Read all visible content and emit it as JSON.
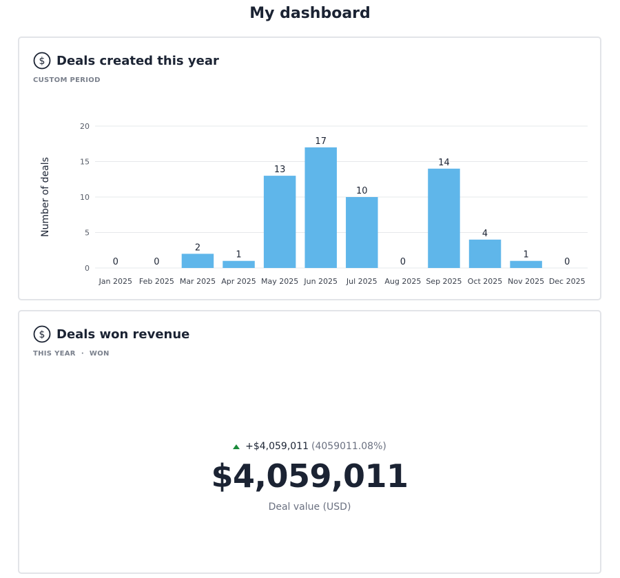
{
  "page": {
    "title": "My dashboard"
  },
  "card_deals_created": {
    "title": "Deals created this year",
    "icon": "dollar-circle-icon",
    "subtitle": "CUSTOM PERIOD"
  },
  "card_deals_won": {
    "title": "Deals won revenue",
    "icon": "dollar-circle-icon",
    "filters": [
      "THIS YEAR",
      "WON"
    ],
    "change_amount": "+$4,059,011",
    "change_percent": "(4059011.08%)",
    "change_direction_icon": "triangle-up-icon",
    "value": "$4,059,011",
    "value_label": "Deal value (USD)"
  },
  "colors": {
    "bar": "#5fb6ea",
    "grid": "#e6e8eb",
    "up": "#1a8a3a"
  },
  "chart_data": {
    "type": "bar",
    "categories": [
      "Jan 2025",
      "Feb 2025",
      "Mar 2025",
      "Apr 2025",
      "May 2025",
      "Jun 2025",
      "Jul 2025",
      "Aug 2025",
      "Sep 2025",
      "Oct 2025",
      "Nov 2025",
      "Dec 2025"
    ],
    "values": [
      0,
      0,
      2,
      1,
      13,
      17,
      10,
      0,
      14,
      4,
      1,
      0
    ],
    "ylabel": "Number of deals",
    "xlabel": "",
    "ylim": [
      0,
      20
    ],
    "yticks": [
      0,
      5,
      10,
      15,
      20
    ],
    "grid": true,
    "data_labels": true
  }
}
